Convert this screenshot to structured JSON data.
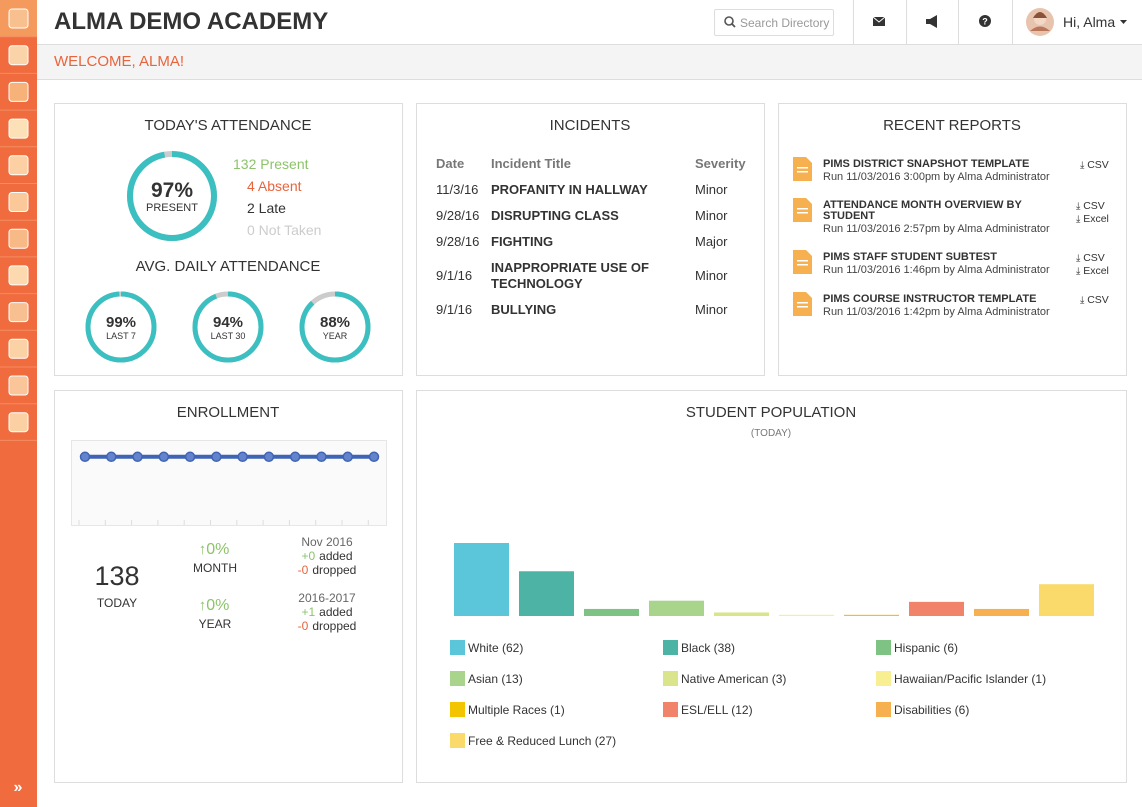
{
  "header": {
    "title": "ALMA DEMO ACADEMY",
    "search_placeholder": "Search Directory",
    "greeting": "Hi, Alma"
  },
  "welcome": "WELCOME, ALMA!",
  "attendance": {
    "title": "TODAY'S ATTENDANCE",
    "today": {
      "value": 97,
      "label": "97%",
      "caption": "PRESENT"
    },
    "breakdown": [
      "132 Present",
      "4 Absent",
      "2 Late",
      "0 Not Taken"
    ],
    "average_title": "AVG. DAILY ATTENDANCE",
    "averages": [
      {
        "value": 99,
        "label": "99%",
        "caption": "LAST 7"
      },
      {
        "value": 94,
        "label": "94%",
        "caption": "LAST 30"
      },
      {
        "value": 88,
        "label": "88%",
        "caption": "YEAR"
      }
    ]
  },
  "incidents": {
    "title": "INCIDENTS",
    "columns": [
      "Date",
      "Incident Title",
      "Severity"
    ],
    "rows": [
      [
        "11/3/16",
        "PROFANITY IN HALLWAY",
        "Minor"
      ],
      [
        "9/28/16",
        "DISRUPTING CLASS",
        "Minor"
      ],
      [
        "9/28/16",
        "FIGHTING",
        "Major"
      ],
      [
        "9/1/16",
        "INAPPROPRIATE USE OF TECHNOLOGY",
        "Minor"
      ],
      [
        "9/1/16",
        "BULLYING",
        "Minor"
      ]
    ]
  },
  "reports": {
    "title": "RECENT REPORTS",
    "items": [
      {
        "name": "PIMS DISTRICT SNAPSHOT TEMPLATE",
        "run": "Run 11/03/2016 3:00pm by Alma Administrator",
        "downloads": [
          "CSV"
        ]
      },
      {
        "name": "ATTENDANCE MONTH OVERVIEW BY STUDENT",
        "run": "Run 11/03/2016 2:57pm by Alma Administrator",
        "downloads": [
          "CSV",
          "Excel"
        ]
      },
      {
        "name": "PIMS STAFF STUDENT SUBTEST",
        "run": "Run 11/03/2016 1:46pm by Alma Administrator",
        "downloads": [
          "CSV",
          "Excel"
        ]
      },
      {
        "name": "PIMS COURSE INSTRUCTOR TEMPLATE",
        "run": "Run 11/03/2016 1:42pm by Alma Administrator",
        "downloads": [
          "CSV"
        ]
      }
    ]
  },
  "enrollment": {
    "title": "ENROLLMENT",
    "chart": {
      "type": "line",
      "values": [
        138,
        138,
        138,
        138,
        138,
        138,
        138,
        138,
        138,
        138,
        138,
        138
      ],
      "ylim": [
        0,
        170
      ],
      "color": "#3f64b5"
    },
    "total": "138",
    "total_caption": "TODAY",
    "month_change": "0%",
    "month_caption": "MONTH",
    "year_change": "0%",
    "year_caption": "YEAR",
    "added_label": "added",
    "dropped_label": "dropped",
    "periods": [
      {
        "name": "Nov 2016",
        "added": "+0",
        "dropped": "-0"
      },
      {
        "name": "2016-2017",
        "added": "+1",
        "dropped": "-0"
      }
    ]
  },
  "population": {
    "title": "STUDENT POPULATION",
    "subtitle": "(TODAY)",
    "chart": {
      "type": "bar",
      "categories": [
        "White (62)",
        "Black (38)",
        "Hispanic (6)",
        "Asian (13)",
        "Native American (3)",
        "Hawaiian/Pacific Islander (1)",
        "Multiple Races (1)",
        "ESL/ELL (12)",
        "Disabilities (6)",
        "Free & Reduced Lunch (27)"
      ],
      "values": [
        62,
        38,
        6,
        13,
        3,
        1,
        1,
        12,
        6,
        27
      ],
      "colors": [
        "#5bc6d9",
        "#4db3a5",
        "#7ec384",
        "#a9d48b",
        "#d9e48b",
        "#f7ef92",
        "#f2c500",
        "#f0836a",
        "#f6b04f",
        "#f9da6b"
      ]
    }
  }
}
